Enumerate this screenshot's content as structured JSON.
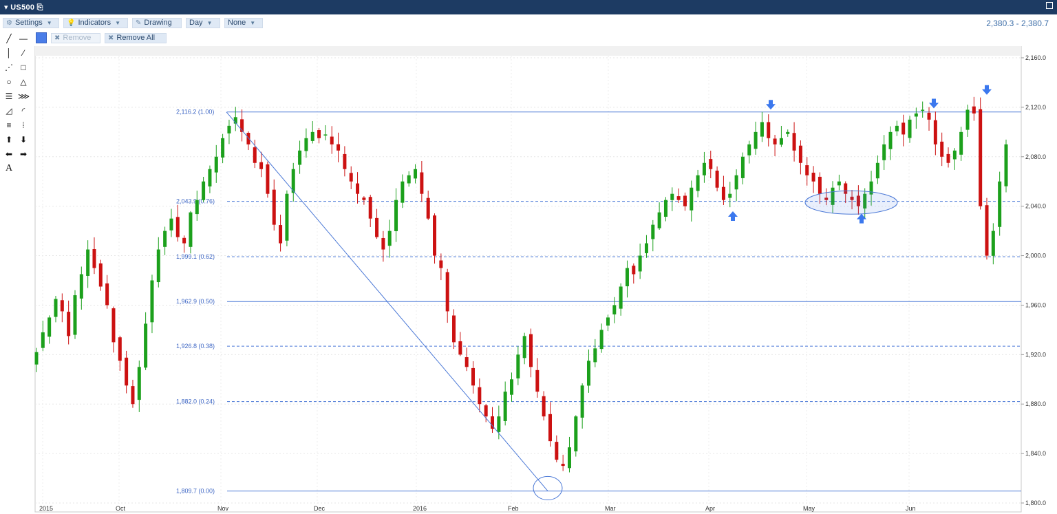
{
  "window": {
    "title": "US500"
  },
  "toolbar": {
    "settings": "Settings",
    "indicators": "Indicators",
    "drawing": "Drawing",
    "period": "Day",
    "overlay": "None",
    "remove": "Remove",
    "remove_all": "Remove All",
    "price_range": "2,380.3 - 2,380.7",
    "drawing_color": "#4a7de8"
  },
  "sidebar_tools": [
    "line-tool-icon",
    "horizontal-line-tool-icon",
    "vertical-line-tool-icon",
    "ray-tool-icon",
    "dashed-line-tool-icon",
    "rectangle-tool-icon",
    "circle-tool-icon",
    "triangle-tool-icon",
    "channel-tool-icon",
    "pitchfork-tool-icon",
    "fan-tool-icon",
    "arc-tool-icon",
    "fibonacci-tool-icon",
    "gann-tool-icon",
    "arrow-up-tool-icon",
    "arrow-down-tool-icon",
    "arrow-left-tool-icon",
    "arrow-right-tool-icon",
    "text-tool-icon"
  ],
  "chart_data": {
    "type": "candlestick",
    "ylim": [
      1800,
      2160
    ],
    "yticks": [
      "2,160.0",
      "2,120.0",
      "2,080.0",
      "2,040.0",
      "2,000.0",
      "1,960.0",
      "1,920.0",
      "1,880.0",
      "1,840.0",
      "1,800.0"
    ],
    "xticks": [
      "2015",
      "Oct",
      "Nov",
      "Dec",
      "2016",
      "Feb",
      "Mar",
      "Apr",
      "May",
      "Jun"
    ],
    "fib_levels": [
      {
        "label": "2,116.2 (1.00)",
        "value": 2116.2,
        "style": "solid"
      },
      {
        "label": "2,043.9 (0.76)",
        "value": 2043.9,
        "style": "dashed"
      },
      {
        "label": "1,999.1 (0.62)",
        "value": 1999.1,
        "style": "dashed"
      },
      {
        "label": "1,962.9 (0.50)",
        "value": 1962.9,
        "style": "solid"
      },
      {
        "label": "1,926.8 (0.38)",
        "value": 1926.8,
        "style": "dashed"
      },
      {
        "label": "1,882.0 (0.24)",
        "value": 1882.0,
        "style": "dashed"
      },
      {
        "label": "1,809.7 (0.00)",
        "value": 1809.7,
        "style": "solid"
      }
    ],
    "close_path": [
      1922,
      1938,
      1950,
      1965,
      1955,
      1935,
      1968,
      1985,
      2005,
      1990,
      1975,
      1960,
      1930,
      1915,
      1895,
      1880,
      1910,
      1945,
      1980,
      2005,
      2020,
      2030,
      2015,
      2010,
      2035,
      2045,
      2060,
      2070,
      2080,
      2095,
      2105,
      2112,
      2100,
      2090,
      2075,
      2070,
      2050,
      2025,
      2010,
      2050,
      2070,
      2085,
      2095,
      2100,
      2095,
      2098,
      2090,
      2085,
      2070,
      2060,
      2050,
      2045,
      2030,
      2015,
      2005,
      2020,
      2045,
      2060,
      2065,
      2070,
      2050,
      2030,
      2000,
      1990,
      1955,
      1930,
      1920,
      1910,
      1895,
      1880,
      1870,
      1860,
      1870,
      1890,
      1900,
      1920,
      1935,
      1910,
      1890,
      1870,
      1850,
      1835,
      1830,
      1845,
      1870,
      1895,
      1915,
      1925,
      1940,
      1950,
      1960,
      1975,
      1990,
      1985,
      2000,
      2010,
      2025,
      2035,
      2045,
      2050,
      2045,
      2040,
      2055,
      2065,
      2075,
      2070,
      2055,
      2045,
      2050,
      2065,
      2080,
      2090,
      2100,
      2108,
      2095,
      2090,
      2095,
      2100,
      2085,
      2075,
      2065,
      2060,
      2050,
      2045,
      2055,
      2060,
      2050,
      2045,
      2040,
      2050,
      2060,
      2075,
      2090,
      2100,
      2105,
      2098,
      2110,
      2115,
      2118,
      2110,
      2090,
      2080,
      2075,
      2085,
      2100,
      2118,
      2115,
      2040,
      2000,
      2020,
      2060,
      2090
    ],
    "drawings": {
      "trendline": {
        "from": [
          "Nov",
          2116.2
        ],
        "to": [
          "Feb",
          1809.7
        ]
      },
      "circles": [
        {
          "center": [
            "Feb",
            1812
          ]
        },
        {
          "center": [
            "May",
            2043
          ]
        }
      ],
      "arrows": [
        {
          "dir": "down",
          "at": [
            "Apr",
            2122
          ]
        },
        {
          "dir": "up",
          "at": [
            "Apr",
            2032
          ]
        },
        {
          "dir": "up",
          "at": [
            "May",
            2030
          ]
        },
        {
          "dir": "down",
          "at": [
            "Jun",
            2123
          ]
        },
        {
          "dir": "down",
          "at": [
            "Jun",
            2134
          ]
        }
      ]
    }
  }
}
